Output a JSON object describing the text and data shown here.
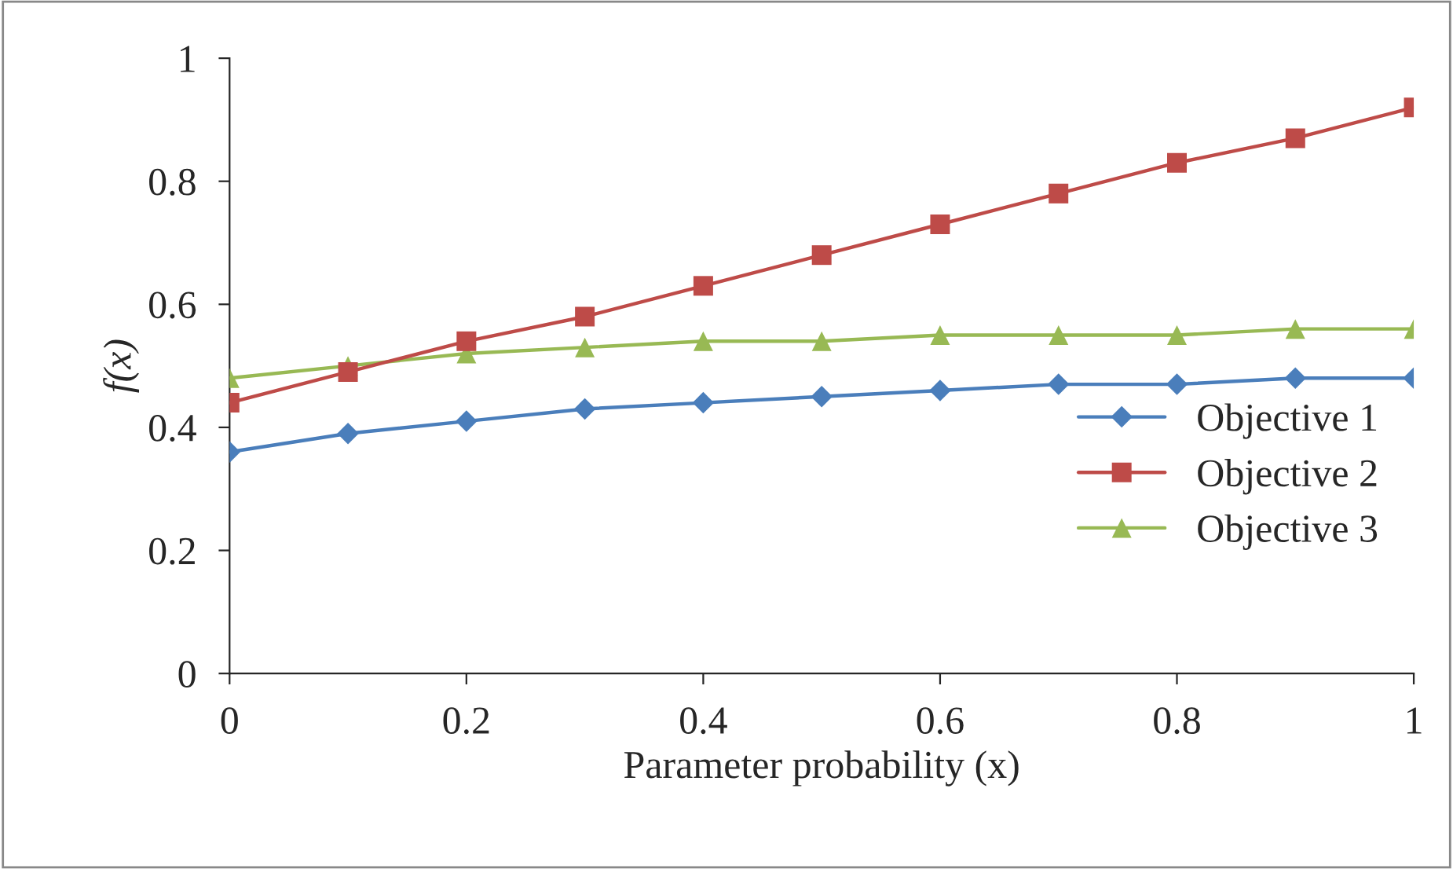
{
  "chart_data": {
    "type": "line",
    "xlabel": "Parameter probability (x)",
    "ylabel": "f(x)",
    "x": [
      0,
      0.1,
      0.2,
      0.3,
      0.4,
      0.5,
      0.6,
      0.7,
      0.8,
      0.9,
      1
    ],
    "series": [
      {
        "name": "Objective 1",
        "color": "#4a7ebb",
        "marker": "diamond",
        "values": [
          0.36,
          0.39,
          0.41,
          0.43,
          0.44,
          0.45,
          0.46,
          0.47,
          0.47,
          0.48,
          0.48
        ]
      },
      {
        "name": "Objective 2",
        "color": "#be4b48",
        "marker": "square",
        "values": [
          0.44,
          0.49,
          0.54,
          0.58,
          0.63,
          0.68,
          0.73,
          0.78,
          0.83,
          0.87,
          0.92
        ]
      },
      {
        "name": "Objective 3",
        "color": "#98b954",
        "marker": "triangle",
        "values": [
          0.48,
          0.5,
          0.52,
          0.53,
          0.54,
          0.54,
          0.55,
          0.55,
          0.55,
          0.56,
          0.56
        ]
      }
    ],
    "xlim": [
      0,
      1
    ],
    "xticks": [
      0,
      0.2,
      0.4,
      0.6,
      0.8,
      1
    ],
    "ylim": [
      0,
      1
    ],
    "yticks": [
      0,
      0.2,
      0.4,
      0.6,
      0.8,
      1
    ],
    "grid": false,
    "legend": "center right",
    "line_style": "solid"
  }
}
